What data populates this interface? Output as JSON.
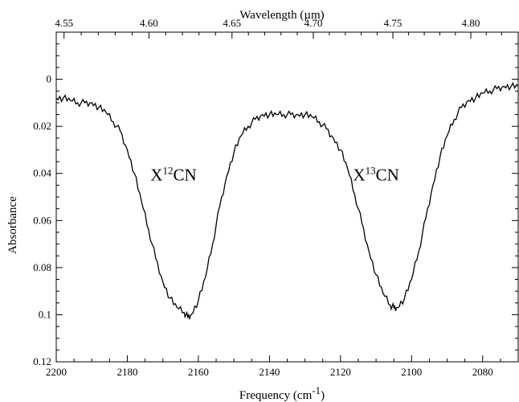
{
  "chart_data": {
    "type": "line",
    "xlabel": "Frequency (cm",
    "xlabel_sup": "-1",
    "xlabel_close": ")",
    "ylabel": "Absorbance",
    "top_xlabel": "Wavelength (µm)",
    "xlim": [
      2200,
      2070
    ],
    "ylim": [
      0.12,
      -0.02
    ],
    "y_inverted": true,
    "grid": false,
    "x_ticks": [
      "2200",
      "2180",
      "2160",
      "2140",
      "2120",
      "2100",
      "2080"
    ],
    "x_tick_values": [
      2200,
      2180,
      2160,
      2140,
      2120,
      2100,
      2080
    ],
    "y_ticks": [
      "0",
      "0.02",
      "0.04",
      "0.06",
      "0.08",
      "0.1",
      "0.12"
    ],
    "y_tick_values": [
      0,
      0.02,
      0.04,
      0.06,
      0.08,
      0.1,
      0.12
    ],
    "top_ticks": [
      "4.55",
      "4.60",
      "4.65",
      "4.70",
      "4.75",
      "4.80"
    ],
    "top_tick_values": [
      4.55,
      4.6,
      4.65,
      4.7,
      4.75,
      4.8
    ],
    "annotations": [
      {
        "base": "X",
        "sup": "12",
        "rest": "CN",
        "x": 2167,
        "y": 0.043
      },
      {
        "base": "X",
        "sup": "13",
        "rest": "CN",
        "x": 2110,
        "y": 0.043
      }
    ],
    "series": [
      {
        "color": "#000000",
        "x": [
          2200,
          2198,
          2196,
          2194,
          2192,
          2190,
          2188,
          2186,
          2184,
          2182,
          2180,
          2178,
          2176,
          2174,
          2172,
          2170,
          2168,
          2166,
          2164,
          2163,
          2162,
          2160,
          2158,
          2156,
          2154,
          2152,
          2150,
          2148,
          2146,
          2144,
          2142,
          2140,
          2138,
          2136,
          2134,
          2132,
          2130,
          2128,
          2126,
          2124,
          2122,
          2120,
          2118,
          2116,
          2114,
          2112,
          2110,
          2108,
          2106,
          2105,
          2104,
          2102,
          2100,
          2098,
          2096,
          2094,
          2092,
          2090,
          2088,
          2086,
          2084,
          2082,
          2080,
          2078,
          2076,
          2074,
          2072,
          2070
        ],
        "values": [
          0.008,
          0.008,
          0.009,
          0.01,
          0.01,
          0.01,
          0.012,
          0.014,
          0.018,
          0.022,
          0.03,
          0.04,
          0.052,
          0.064,
          0.076,
          0.086,
          0.093,
          0.097,
          0.099,
          0.101,
          0.1,
          0.094,
          0.084,
          0.07,
          0.054,
          0.041,
          0.031,
          0.024,
          0.02,
          0.017,
          0.015,
          0.015,
          0.015,
          0.015,
          0.015,
          0.015,
          0.015,
          0.016,
          0.018,
          0.021,
          0.025,
          0.03,
          0.038,
          0.049,
          0.061,
          0.073,
          0.083,
          0.091,
          0.096,
          0.097,
          0.097,
          0.093,
          0.085,
          0.073,
          0.059,
          0.045,
          0.033,
          0.024,
          0.017,
          0.012,
          0.009,
          0.008,
          0.006,
          0.005,
          0.004,
          0.003,
          0.003,
          0.003
        ]
      }
    ]
  }
}
